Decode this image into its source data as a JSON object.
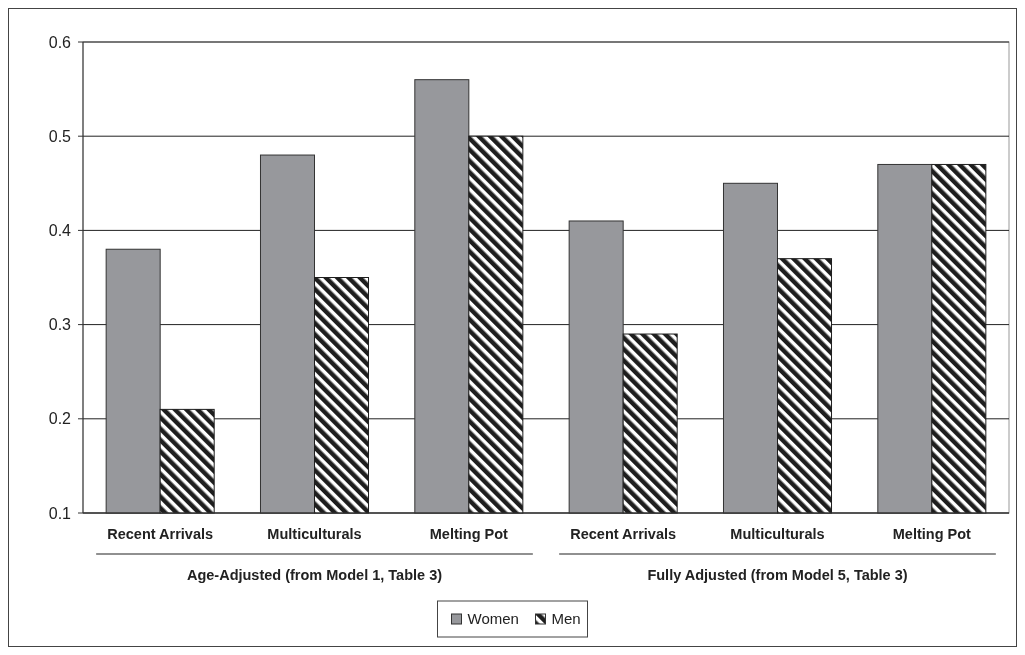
{
  "chart_data": {
    "type": "bar",
    "categories": [
      "Recent Arrivals",
      "Multiculturals",
      "Melting Pot",
      "Recent Arrivals",
      "Multiculturals",
      "Melting Pot"
    ],
    "series": [
      {
        "name": "Women",
        "color": "#97989c",
        "values": [
          0.38,
          0.48,
          0.56,
          0.41,
          0.45,
          0.47
        ]
      },
      {
        "name": "Men",
        "color": "#1e1e1e",
        "values": [
          0.21,
          0.35,
          0.5,
          0.29,
          0.37,
          0.47
        ]
      }
    ],
    "ylim": [
      0.1,
      0.6
    ],
    "yticks": [
      0.1,
      0.2,
      0.3,
      0.4,
      0.5,
      0.6
    ],
    "grid": "y",
    "legend": "bottom",
    "annotations": [
      "Age-Adjusted (from Model 1, Table 3)",
      "Fully Adjusted (from Model 5, Table 3)"
    ]
  }
}
